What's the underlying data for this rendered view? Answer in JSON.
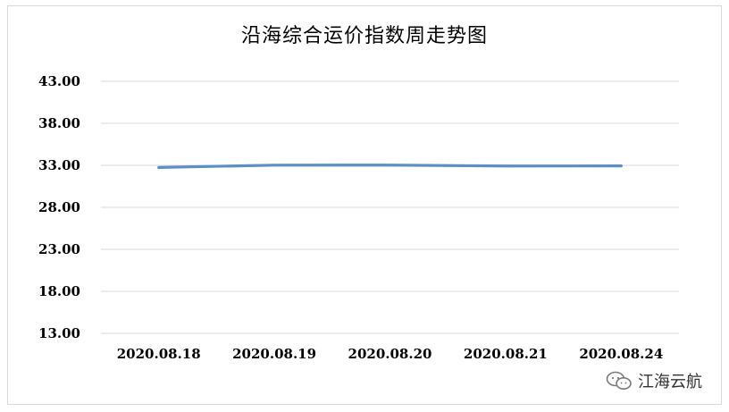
{
  "chart_data": {
    "type": "line",
    "title": "沿海综合运价指数周走势图",
    "categories": [
      "2020.08.18",
      "2020.08.19",
      "2020.08.20",
      "2020.08.21",
      "2020.08.24"
    ],
    "series": [
      {
        "values": [
          32.75,
          33.02,
          33.03,
          32.92,
          32.93
        ]
      }
    ],
    "y_ticks": [
      "13.00",
      "18.00",
      "23.00",
      "28.00",
      "33.00",
      "38.00",
      "43.00"
    ],
    "ylim": [
      13,
      43
    ],
    "xlabel": "",
    "ylabel": "",
    "grid": true,
    "legend": "none",
    "line_color": "#5b8fc7",
    "grid_color": "#d9d9d9"
  },
  "watermark": {
    "text": "江海云航",
    "icon": "wechat-icon"
  }
}
